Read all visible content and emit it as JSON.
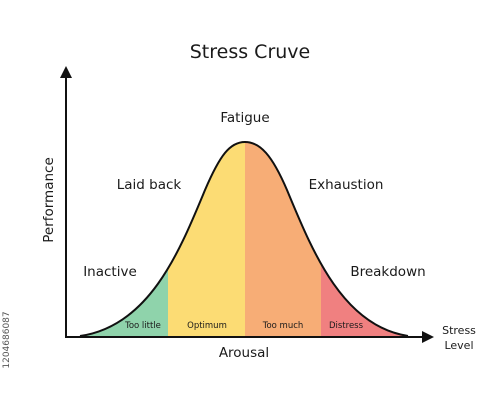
{
  "title": "Stress Cruve",
  "labels": {
    "fatigue": "Fatigue",
    "laid_back": "Laid back",
    "exhaustion": "Exhaustion",
    "inactive": "Inactive",
    "breakdown": "Breakdown"
  },
  "zones": [
    {
      "name": "Too little",
      "color": "#8fd3ab"
    },
    {
      "name": "Optimum",
      "color": "#fcdc74"
    },
    {
      "name": "Too much",
      "color": "#f7ad76"
    },
    {
      "name": "Distress",
      "color": "#f08080"
    }
  ],
  "axes": {
    "x_label": "Arousal",
    "y_label": "Performance",
    "corner_line1": "Stress",
    "corner_line2": "Level"
  },
  "watermark_id": "1204686087",
  "colors": {
    "curve": "#111111",
    "axis": "#111111"
  }
}
